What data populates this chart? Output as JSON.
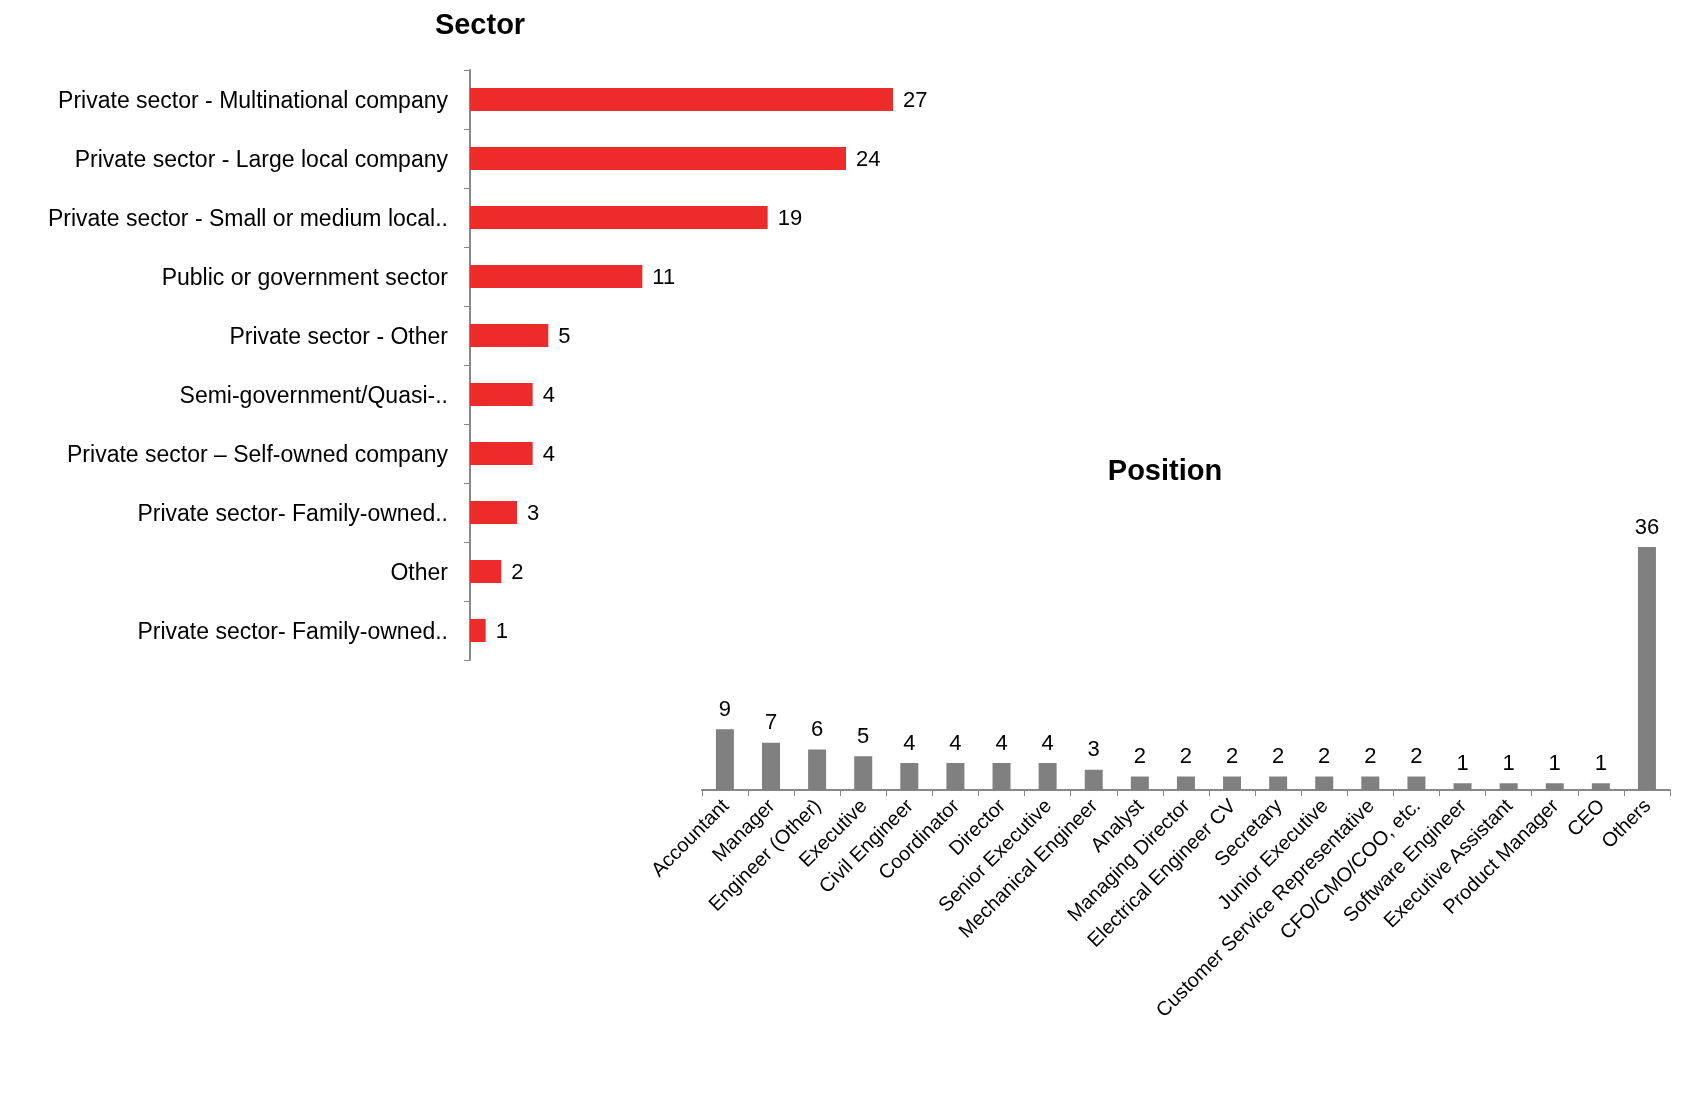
{
  "chart_data": [
    {
      "type": "bar",
      "title": "Sector",
      "orientation": "horizontal",
      "data_labels": true,
      "categories": [
        "Private sector - Multinational company",
        "Private sector - Large local company",
        "Private sector - Small or medium local..",
        "Public or government sector",
        "Private sector - Other",
        "Semi-government/Quasi-..",
        "Private sector – Self-owned company",
        "Private sector- Family-owned..",
        "Other",
        "Private sector- Family-owned.."
      ],
      "series": [
        {
          "color": "#ee2b2b",
          "values": [
            27,
            24,
            19,
            11,
            5,
            4,
            4,
            3,
            2,
            1
          ]
        }
      ]
    },
    {
      "type": "bar",
      "title": "Position",
      "data_labels": true,
      "categories": [
        "Accountant",
        "Manager",
        "Engineer (Other)",
        "Executive",
        "Civil Engineer",
        "Coordinator",
        "Director",
        "Senior Executive",
        "Mechanical Engineer",
        "Analyst",
        "Managing Director",
        "Electrical Engineer CV",
        "Secretary",
        "Junior Executive",
        "Customer Service Representative",
        "CFO/CMO/COO, etc.",
        "Software Engineer",
        "Executive Assistant",
        "Product Manager",
        "CEO",
        "Others"
      ],
      "series": [
        {
          "color": "#808080",
          "values": [
            9,
            7,
            6,
            5,
            4,
            4,
            4,
            4,
            3,
            2,
            2,
            2,
            2,
            2,
            2,
            2,
            1,
            1,
            1,
            1,
            36
          ]
        }
      ]
    }
  ]
}
